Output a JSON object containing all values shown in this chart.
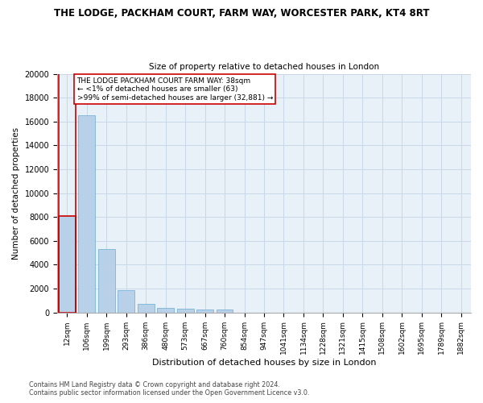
{
  "title_line1": "THE LODGE, PACKHAM COURT, FARM WAY, WORCESTER PARK, KT4 8RT",
  "title_line2": "Size of property relative to detached houses in London",
  "xlabel": "Distribution of detached houses by size in London",
  "ylabel": "Number of detached properties",
  "bar_color": "#b8d0e8",
  "bar_edge_color": "#6aaad4",
  "highlight_color": "#cc0000",
  "categories": [
    "12sqm",
    "106sqm",
    "199sqm",
    "293sqm",
    "386sqm",
    "480sqm",
    "573sqm",
    "667sqm",
    "760sqm",
    "854sqm",
    "947sqm",
    "1041sqm",
    "1134sqm",
    "1228sqm",
    "1321sqm",
    "1415sqm",
    "1508sqm",
    "1602sqm",
    "1695sqm",
    "1789sqm",
    "1882sqm"
  ],
  "values": [
    8100,
    16500,
    5300,
    1850,
    700,
    370,
    280,
    230,
    210,
    0,
    0,
    0,
    0,
    0,
    0,
    0,
    0,
    0,
    0,
    0,
    0
  ],
  "highlight_index": 0,
  "ylim": [
    0,
    20000
  ],
  "yticks": [
    0,
    2000,
    4000,
    6000,
    8000,
    10000,
    12000,
    14000,
    16000,
    18000,
    20000
  ],
  "annotation_text": "THE LODGE PACKHAM COURT FARM WAY: 38sqm\n← <1% of detached houses are smaller (63)\n>99% of semi-detached houses are larger (32,881) →",
  "footnote_line1": "Contains HM Land Registry data © Crown copyright and database right 2024.",
  "footnote_line2": "Contains public sector information licensed under the Open Government Licence v3.0.",
  "background_color": "#ffffff",
  "grid_color": "#c8d8e8",
  "ax_facecolor": "#e8f0f8"
}
